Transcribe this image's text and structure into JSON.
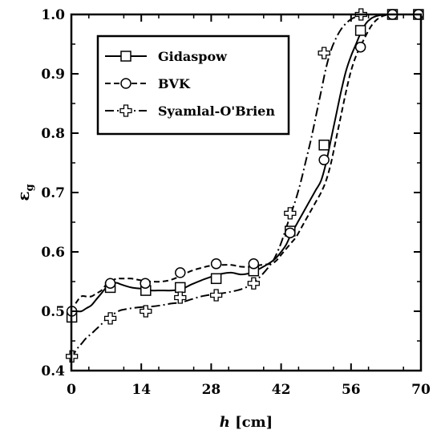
{
  "chart_data": {
    "type": "line",
    "title": "",
    "xlabel": "h [cm]",
    "xlabel_parts": {
      "italic": "h",
      "rest": " [cm]"
    },
    "ylabel": "εg",
    "ylabel_parts": {
      "main": "ε",
      "sub": "g"
    },
    "xlim": [
      0,
      70
    ],
    "ylim": [
      0.4,
      1.0
    ],
    "xticks": [
      0,
      14,
      28,
      42,
      56,
      70
    ],
    "xtick_labels": [
      "0",
      "14",
      "28",
      "42",
      "56",
      "70"
    ],
    "yticks": [
      0.4,
      0.5,
      0.6,
      0.7,
      0.8,
      0.9,
      1.0
    ],
    "ytick_labels": [
      "0.4",
      "0.5",
      "0.6",
      "0.7",
      "0.8",
      "0.9",
      "1.0"
    ],
    "grid": false,
    "legend_position": "top-left",
    "series": [
      {
        "name": "Gidaspow",
        "marker": "square",
        "line": "solid",
        "color": "#000000",
        "curve_x": [
          0,
          1,
          2,
          3,
          4,
          5,
          6,
          7,
          8,
          9,
          10,
          12,
          14,
          16,
          18,
          20,
          22,
          24,
          26,
          28,
          30,
          32,
          34,
          36,
          38,
          40,
          41,
          42,
          43,
          44,
          45,
          46,
          47,
          48,
          49,
          50,
          51,
          52,
          53,
          54,
          55,
          56,
          57,
          58,
          59,
          60,
          61,
          62,
          63,
          64,
          65,
          70
        ],
        "curve_y": [
          0.5,
          0.5,
          0.5,
          0.505,
          0.51,
          0.52,
          0.53,
          0.54,
          0.545,
          0.548,
          0.545,
          0.54,
          0.538,
          0.535,
          0.535,
          0.535,
          0.537,
          0.545,
          0.552,
          0.558,
          0.563,
          0.565,
          0.562,
          0.565,
          0.573,
          0.583,
          0.59,
          0.6,
          0.612,
          0.63,
          0.645,
          0.66,
          0.675,
          0.69,
          0.705,
          0.72,
          0.75,
          0.79,
          0.83,
          0.87,
          0.905,
          0.93,
          0.95,
          0.97,
          0.985,
          0.993,
          0.997,
          0.999,
          1.0,
          1.0,
          1.0,
          1.0
        ],
        "points_x": [
          0.1,
          7.8,
          14.9,
          21.8,
          29.0,
          36.5,
          43.8,
          50.6,
          57.9,
          64.3,
          69.5
        ],
        "points_y": [
          0.49,
          0.54,
          0.535,
          0.54,
          0.555,
          0.568,
          0.635,
          0.78,
          0.973,
          1.0,
          1.0
        ]
      },
      {
        "name": "BVK",
        "marker": "circle",
        "line": "dashed",
        "color": "#000000",
        "curve_x": [
          0,
          1,
          2,
          3,
          4,
          5,
          6,
          7,
          8,
          9,
          10,
          12,
          14,
          16,
          18,
          20,
          22,
          24,
          26,
          28,
          30,
          32,
          34,
          36,
          38,
          40,
          41,
          42,
          43,
          44,
          45,
          46,
          47,
          48,
          49,
          50,
          51,
          52,
          53,
          54,
          55,
          56,
          57,
          58,
          59,
          60,
          61,
          62,
          63,
          64,
          65,
          70
        ],
        "curve_y": [
          0.5,
          0.515,
          0.525,
          0.525,
          0.525,
          0.53,
          0.535,
          0.545,
          0.55,
          0.555,
          0.555,
          0.555,
          0.552,
          0.55,
          0.55,
          0.553,
          0.56,
          0.568,
          0.573,
          0.577,
          0.578,
          0.578,
          0.575,
          0.575,
          0.578,
          0.58,
          0.585,
          0.595,
          0.605,
          0.615,
          0.625,
          0.64,
          0.655,
          0.67,
          0.685,
          0.7,
          0.72,
          0.75,
          0.79,
          0.83,
          0.87,
          0.905,
          0.93,
          0.948,
          0.965,
          0.98,
          0.99,
          0.996,
          0.999,
          1.0,
          1.0,
          1.0
        ],
        "points_x": [
          0.1,
          7.8,
          14.8,
          21.8,
          29.0,
          36.5,
          43.8,
          50.6,
          57.9,
          64.3,
          69.5
        ],
        "points_y": [
          0.5,
          0.547,
          0.547,
          0.565,
          0.58,
          0.58,
          0.632,
          0.755,
          0.945,
          1.0,
          1.0
        ]
      },
      {
        "name": "Syamlal-O'Brien",
        "marker": "plus",
        "line": "dash-dot",
        "color": "#000000",
        "curve_x": [
          0,
          1,
          2,
          3,
          4,
          5,
          6,
          7,
          8,
          9,
          10,
          12,
          14,
          16,
          18,
          20,
          22,
          24,
          26,
          28,
          30,
          32,
          34,
          36,
          38,
          40,
          41,
          42,
          43,
          44,
          45,
          46,
          47,
          48,
          49,
          50,
          51,
          52,
          53,
          54,
          55,
          56,
          57,
          58,
          59,
          60,
          62,
          64,
          66,
          70
        ],
        "curve_y": [
          0.42,
          0.435,
          0.445,
          0.455,
          0.462,
          0.47,
          0.478,
          0.487,
          0.493,
          0.498,
          0.502,
          0.505,
          0.507,
          0.508,
          0.51,
          0.513,
          0.515,
          0.52,
          0.525,
          0.528,
          0.53,
          0.533,
          0.537,
          0.545,
          0.56,
          0.58,
          0.595,
          0.615,
          0.64,
          0.665,
          0.69,
          0.72,
          0.755,
          0.79,
          0.83,
          0.87,
          0.91,
          0.94,
          0.96,
          0.975,
          0.985,
          0.992,
          0.996,
          0.999,
          1.0,
          1.0,
          1.0,
          1.0,
          1.0,
          1.0
        ],
        "points_x": [
          0.1,
          7.8,
          14.9,
          21.8,
          29.0,
          36.5,
          43.8,
          50.6,
          58.0
        ],
        "points_y": [
          0.424,
          0.488,
          0.5,
          0.523,
          0.527,
          0.547,
          0.665,
          0.935,
          1.0
        ]
      }
    ]
  }
}
